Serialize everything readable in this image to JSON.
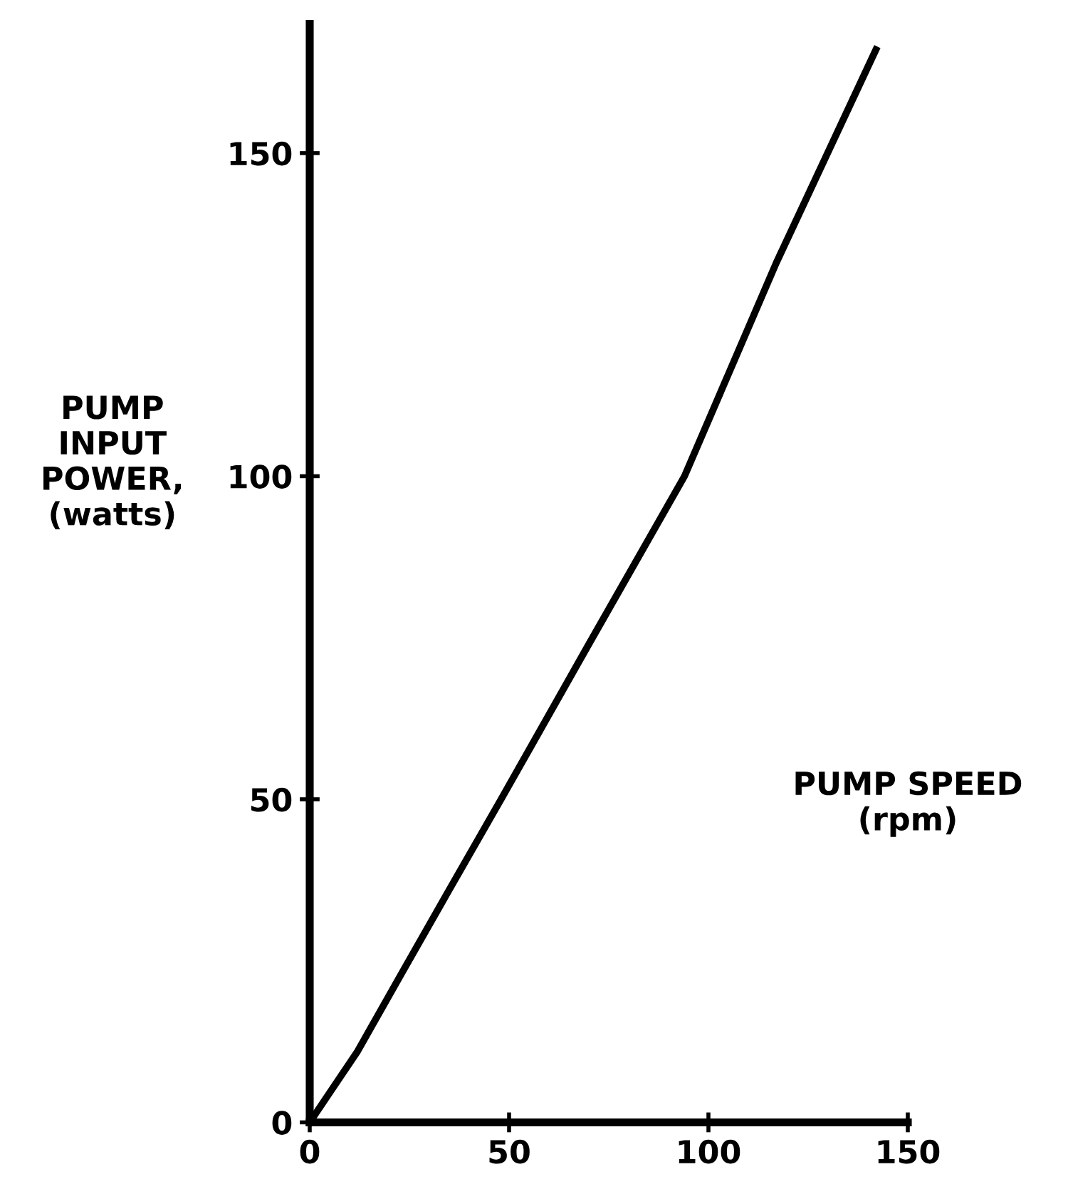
{
  "chart_data": {
    "type": "line",
    "xlabel": "PUMP SPEED\n(rpm)",
    "ylabel": "PUMP\nINPUT\nPOWER,\n(watts)",
    "x": [
      0,
      12,
      23,
      35,
      48,
      70,
      94,
      117,
      142
    ],
    "values": [
      0,
      11,
      23,
      36,
      50,
      74,
      100,
      133,
      166
    ],
    "color": "#000000",
    "xlim": [
      0,
      150
    ],
    "ylim": [
      0,
      170
    ],
    "xticks": [
      0,
      50,
      100,
      150
    ],
    "yticks": [
      0,
      50,
      100,
      150
    ],
    "grid": false,
    "marker": "none",
    "line_style": "solid"
  }
}
